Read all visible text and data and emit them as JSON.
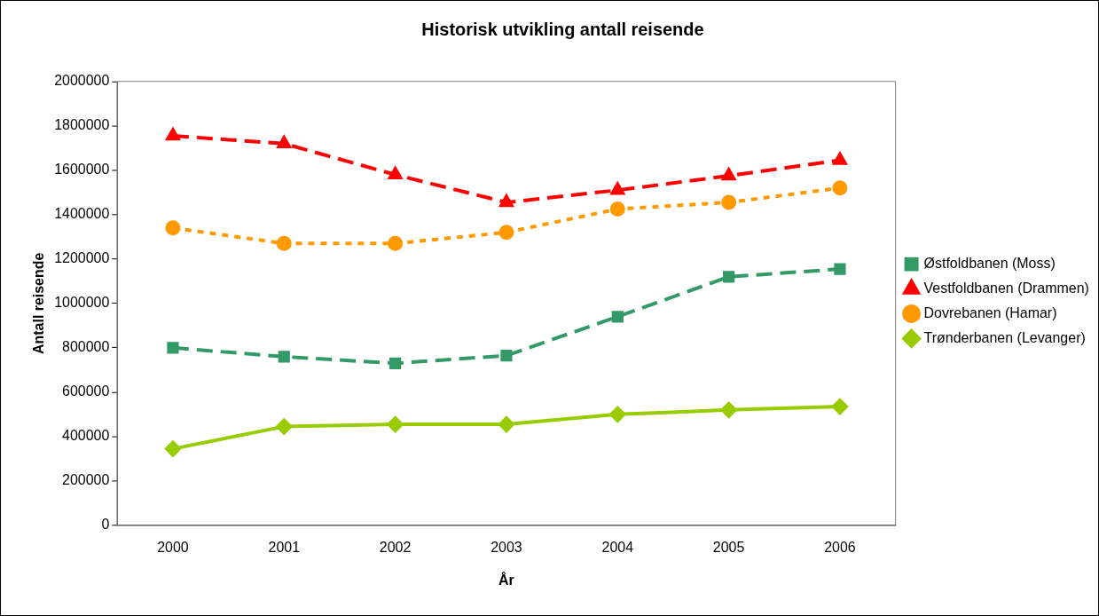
{
  "chart_data": {
    "type": "line",
    "title": "Historisk utvikling antall reisende",
    "xlabel": "År",
    "ylabel": "Antall reisende",
    "categories": [
      "2000",
      "2001",
      "2002",
      "2003",
      "2004",
      "2005",
      "2006"
    ],
    "series": [
      {
        "name": "Østfoldbanen (Moss)",
        "color": "#339966",
        "marker": "square",
        "line_style": "dashed",
        "values": [
          800000,
          760000,
          730000,
          765000,
          940000,
          1120000,
          1155000
        ]
      },
      {
        "name": "Vestfoldbanen (Drammen)",
        "color": "#ff0000",
        "marker": "triangle",
        "line_style": "dashed",
        "values": [
          1755000,
          1720000,
          1580000,
          1455000,
          1510000,
          1575000,
          1645000
        ]
      },
      {
        "name": "Dovrebanen (Hamar)",
        "color": "#ff9900",
        "marker": "circle",
        "line_style": "dotted",
        "values": [
          1340000,
          1270000,
          1270000,
          1320000,
          1425000,
          1455000,
          1520000
        ]
      },
      {
        "name": "Trønderbanen (Levanger)",
        "color": "#99cc00",
        "marker": "diamond",
        "line_style": "solid",
        "values": [
          345000,
          445000,
          455000,
          455000,
          500000,
          520000,
          535000
        ]
      }
    ],
    "ylim": [
      0,
      2000000
    ],
    "yticks": [
      0,
      200000,
      400000,
      600000,
      800000,
      1000000,
      1200000,
      1400000,
      1600000,
      1800000,
      2000000
    ],
    "grid": false,
    "legend": "right"
  }
}
